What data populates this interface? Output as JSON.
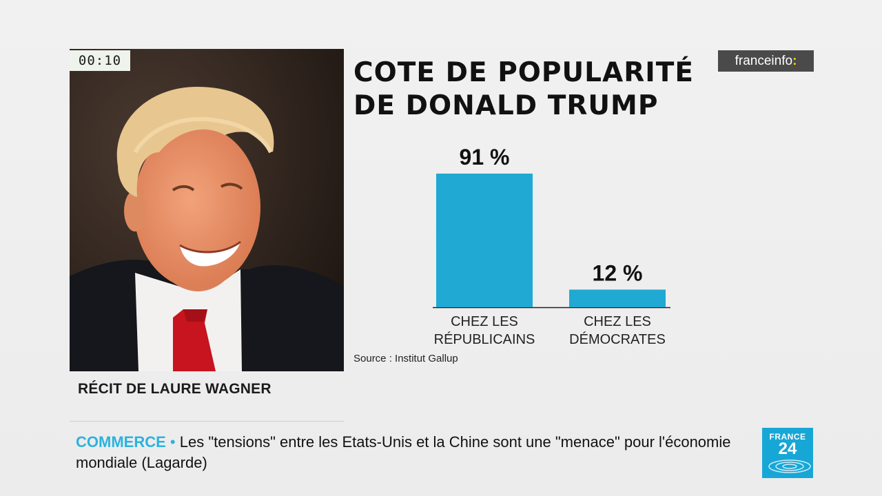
{
  "timer": "00:10",
  "brand": {
    "name": "franceinfo",
    "suffix": ":",
    "accent": "#ffd400",
    "bg": "#4a4a4a"
  },
  "photo": {
    "credit": "RÉCIT DE LAURE WAGNER"
  },
  "chart_data": {
    "type": "bar",
    "title": "COTE DE POPULARITÉ\nDE DONALD TRUMP",
    "categories": [
      "CHEZ LES\nRÉPUBLICAINS",
      "CHEZ LES\nDÉMOCRATES"
    ],
    "values": [
      91,
      12
    ],
    "value_labels": [
      "91 %",
      "12 %"
    ],
    "unit": "%",
    "ylim": [
      0,
      100
    ],
    "grid": false,
    "bar_color": "#1fa9d3",
    "source": "Source : Institut Gallup"
  },
  "ticker": {
    "category": "COMMERCE",
    "bullet": "•",
    "text": "Les \"tensions\" entre les Etats-Unis et la Chine sont une \"menace\" pour l'économie mondiale (Lagarde)"
  },
  "channel": {
    "line1": "FRANCE",
    "line2": "24",
    "color": "#17a7d6"
  }
}
